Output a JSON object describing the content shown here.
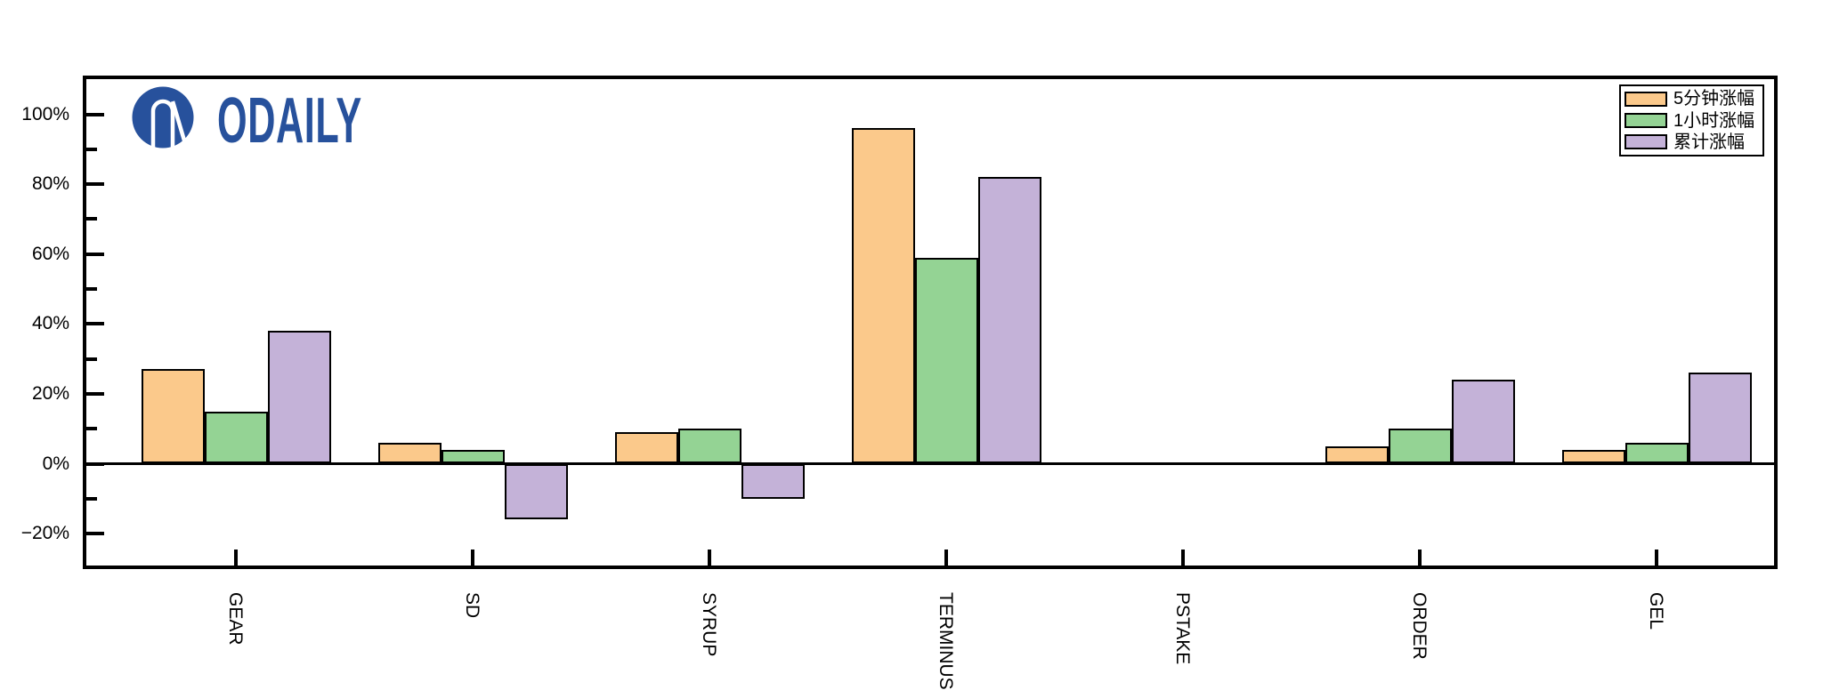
{
  "brand": {
    "logo_text": "ODAILY",
    "logo_color": "#27519C"
  },
  "chart_data": {
    "type": "bar",
    "title": "",
    "xlabel": "",
    "ylabel": "",
    "categories": [
      "GEAR",
      "SD",
      "SYRUP",
      "TERMINUS",
      "PSTAKE",
      "ORDER",
      "GEL"
    ],
    "series": [
      {
        "name": "5分钟涨幅",
        "color": "#FBC98B",
        "values": [
          27,
          6,
          9,
          96,
          0,
          5,
          4
        ]
      },
      {
        "name": "1小时涨幅",
        "color": "#94D394",
        "values": [
          15,
          4,
          10,
          59,
          0,
          10,
          6
        ]
      },
      {
        "name": "累计涨幅",
        "color": "#C4B2D8",
        "values": [
          38,
          -16,
          -10,
          82,
          0,
          24,
          26
        ]
      }
    ],
    "bar_edge_color": "#000000",
    "y_ticks": [
      {
        "label": "100%",
        "value": 100
      },
      {
        "label": "80%",
        "value": 80
      },
      {
        "label": "60%",
        "value": 60
      },
      {
        "label": "40%",
        "value": 40
      },
      {
        "label": "20%",
        "value": 20
      },
      {
        "label": "0%",
        "value": 0
      },
      {
        "label": "−20%",
        "value": -20
      }
    ],
    "y_minor_tick_values": [
      90,
      70,
      50,
      30,
      10,
      -10
    ],
    "ylim": [
      -29.5,
      110.5
    ],
    "grid": false,
    "zero_line": true,
    "legend_position": "top-right",
    "x_tick_label_rotation_deg": 90
  }
}
